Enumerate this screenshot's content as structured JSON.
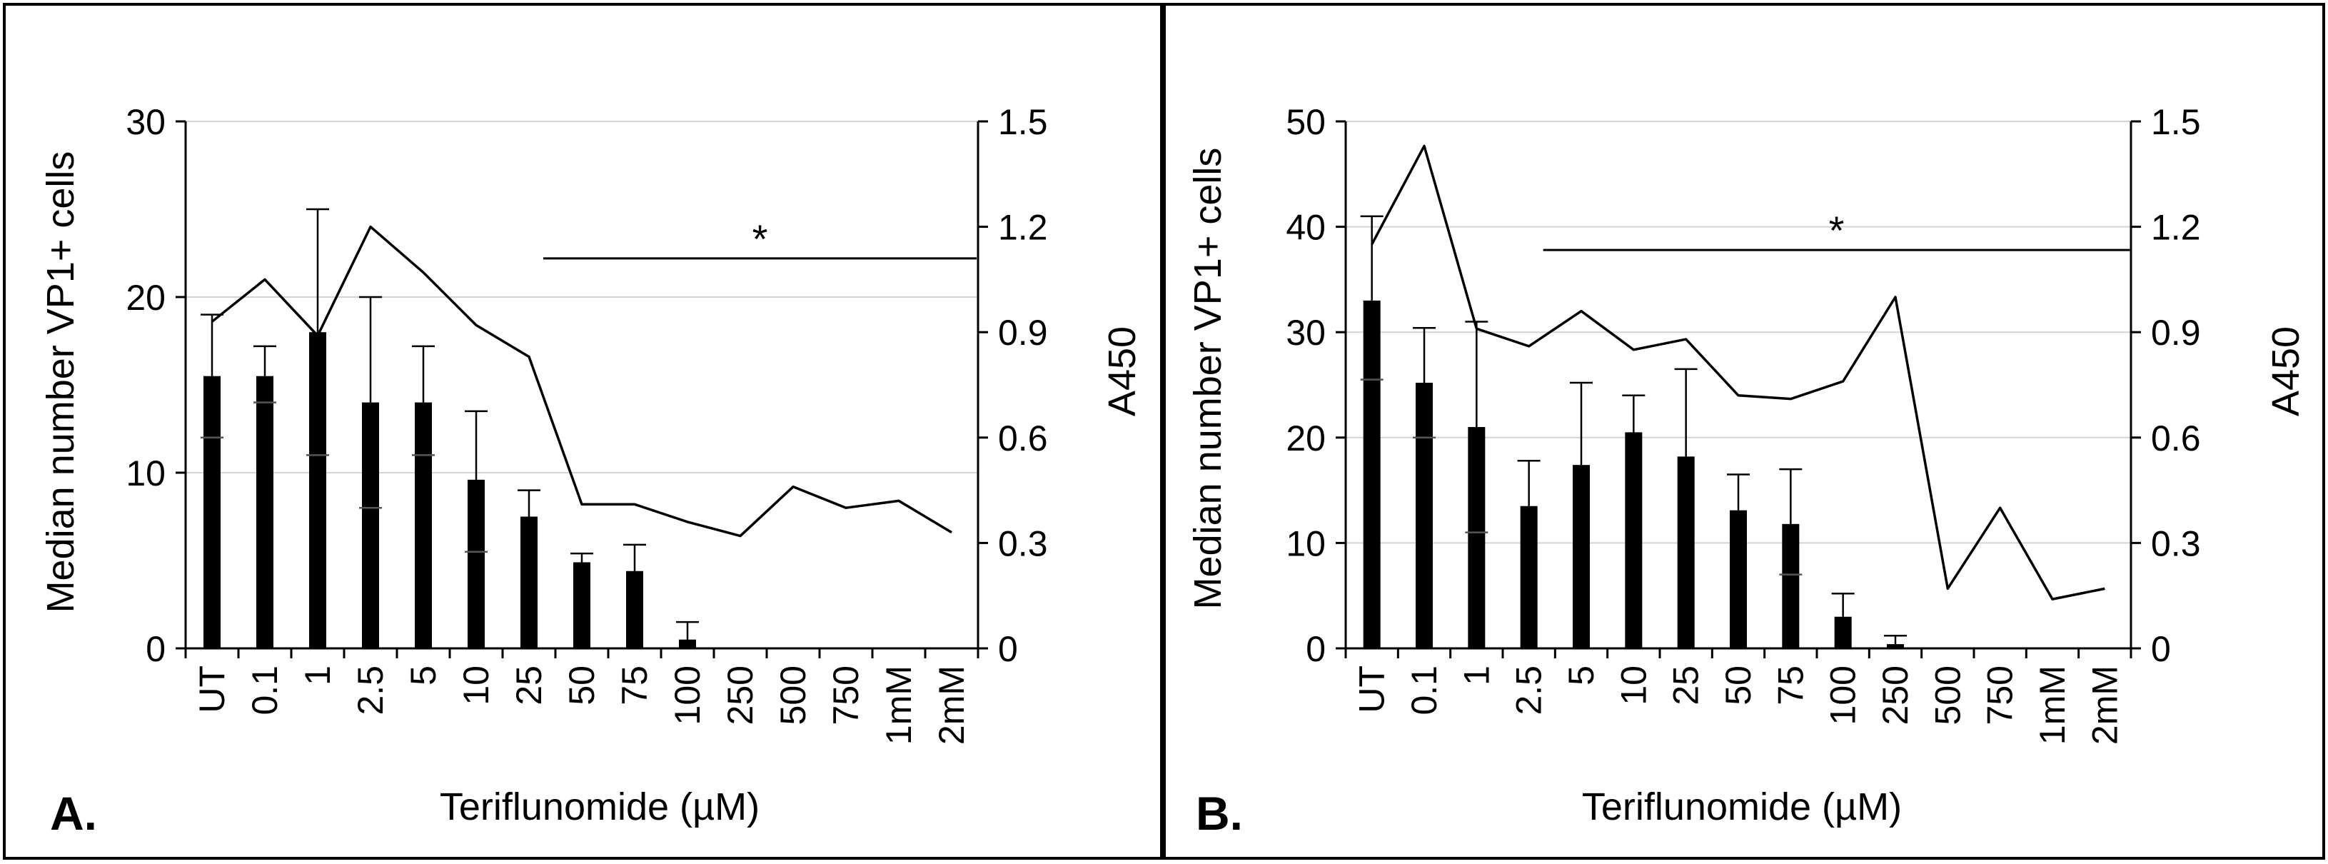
{
  "figure": {
    "x_axis_title": "Teriflunomide (µM)"
  },
  "chart_data": [
    {
      "type": "bar",
      "panel_label": "A.",
      "categories": [
        "UT",
        "0.1",
        "1",
        "2.5",
        "5",
        "10",
        "25",
        "50",
        "75",
        "100",
        "250",
        "500",
        "750",
        "1mM",
        "2mM"
      ],
      "xlabel": "Teriflunomide (µM)",
      "ylabel": "Median number VP1+ cells",
      "ylabel_right": "A450",
      "ylim": [
        0,
        30
      ],
      "yticks": [
        0,
        10,
        20,
        30
      ],
      "ylim_right": [
        0,
        1.5
      ],
      "yticks_right": [
        "0",
        "0.3",
        "0.6",
        "0.9",
        "1.2",
        "1.5"
      ],
      "grid": true,
      "series": [
        {
          "name": "Median number VP1+ cells",
          "type": "bar",
          "axis": "left",
          "values": [
            15.5,
            15.5,
            18,
            14,
            14,
            9.6,
            7.5,
            4.9,
            4.4,
            0.5,
            0,
            0,
            0,
            0,
            0
          ],
          "error_upper": [
            19,
            17.2,
            25,
            20,
            17.2,
            13.5,
            9,
            5.4,
            5.9,
            1.5,
            null,
            null,
            null,
            null,
            null
          ],
          "error_lower": [
            12,
            14,
            11,
            8,
            11,
            5.5,
            null,
            null,
            null,
            null,
            null,
            null,
            null,
            null,
            null
          ]
        },
        {
          "name": "A450",
          "type": "line",
          "axis": "right",
          "values": [
            0.93,
            1.05,
            0.89,
            1.2,
            1.07,
            0.92,
            0.83,
            0.41,
            0.41,
            0.36,
            0.32,
            0.46,
            0.4,
            0.42,
            0.33
          ]
        }
      ],
      "annotation": {
        "text": "*",
        "from_category": "25",
        "to_category": "2mM",
        "value": 22.2
      }
    },
    {
      "type": "bar",
      "panel_label": "B.",
      "categories": [
        "UT",
        "0.1",
        "1",
        "2.5",
        "5",
        "10",
        "25",
        "50",
        "75",
        "100",
        "250",
        "500",
        "750",
        "1mM",
        "2mM"
      ],
      "xlabel": "Teriflunomide (µM)",
      "ylabel": "Median number  VP1+ cells",
      "ylabel_right": "A450",
      "ylim": [
        0,
        50
      ],
      "yticks": [
        0,
        10,
        20,
        30,
        40,
        50
      ],
      "ylim_right": [
        0,
        1.5
      ],
      "yticks_right": [
        "0",
        "0.3",
        "0.6",
        "0.9",
        "1.2",
        "1.5"
      ],
      "grid": true,
      "series": [
        {
          "name": "Median number VP1+ cells",
          "type": "bar",
          "axis": "left",
          "values": [
            33,
            25.2,
            21,
            13.5,
            17.4,
            20.5,
            18.2,
            13.1,
            11.8,
            3,
            0.4,
            0,
            0,
            0,
            0
          ],
          "error_upper": [
            41,
            30.4,
            31,
            17.8,
            25.2,
            24,
            26.5,
            16.5,
            17,
            5.2,
            1.2,
            null,
            null,
            null,
            null
          ],
          "error_lower": [
            25.5,
            20,
            11,
            null,
            null,
            null,
            null,
            null,
            7,
            null,
            null,
            null,
            null,
            null,
            null
          ]
        },
        {
          "name": "A450",
          "type": "line",
          "axis": "right",
          "values": [
            1.15,
            1.43,
            0.91,
            0.86,
            0.96,
            0.85,
            0.88,
            0.72,
            0.71,
            0.76,
            1.0,
            0.17,
            0.4,
            0.14,
            0.17
          ]
        }
      ],
      "annotation": {
        "text": "*",
        "from_category": "2.5",
        "to_category": "2mM",
        "value": 37.8
      }
    }
  ]
}
